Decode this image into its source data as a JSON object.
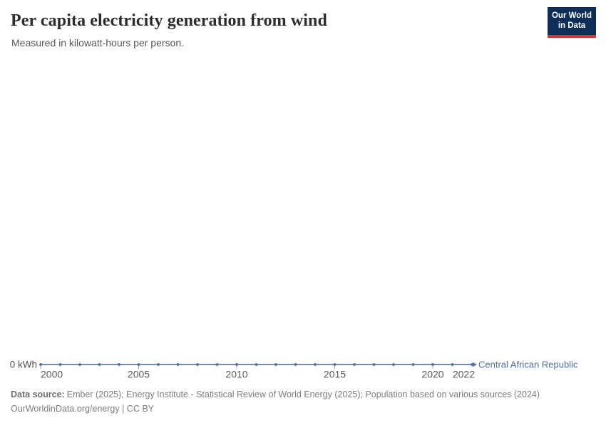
{
  "header": {
    "title": "Per capita electricity generation from wind",
    "subtitle": "Measured in kilowatt-hours per person."
  },
  "logo": {
    "line1": "Our World",
    "line2": "in Data"
  },
  "chart_data": {
    "type": "line",
    "title": "Per capita electricity generation from wind",
    "unit": "kilowatt-hours per person",
    "x": [
      2000,
      2001,
      2002,
      2003,
      2004,
      2005,
      2006,
      2007,
      2008,
      2009,
      2010,
      2011,
      2012,
      2013,
      2014,
      2015,
      2016,
      2017,
      2018,
      2019,
      2020,
      2021,
      2022
    ],
    "series": [
      {
        "name": "Central African Republic",
        "values": [
          0,
          0,
          0,
          0,
          0,
          0,
          0,
          0,
          0,
          0,
          0,
          0,
          0,
          0,
          0,
          0,
          0,
          0,
          0,
          0,
          0,
          0,
          0
        ]
      }
    ],
    "x_ticks": [
      "2000",
      "2005",
      "2010",
      "2015",
      "2020",
      "2022"
    ],
    "y_axis_label": "0 kWh",
    "xlim": [
      2000,
      2022
    ],
    "grid": false,
    "legend_position": "end-of-line",
    "marker": "dot"
  },
  "footer": {
    "source_label": "Data source:",
    "source_text": "Ember (2025); Energy Institute - Statistical Review of World Energy (2025); Population based on various sources (2024)",
    "license_line": "OurWorldinData.org/energy | CC BY"
  },
  "colors": {
    "line": "#5b7cb0",
    "marker": "#4a6b9f",
    "entity_label": "#4c6da9",
    "tick_mark": "#8fa6c6",
    "axis_text": "#5b5b5b",
    "y_label_text": "#4d4d4d",
    "logo_bg": "#0e2e57",
    "logo_stripe": "#ce343e"
  }
}
